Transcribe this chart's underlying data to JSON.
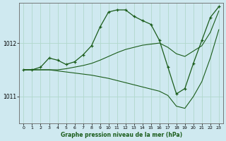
{
  "title": "Graphe pression niveau de la mer (hPa)",
  "background_color": "#cfe9f0",
  "grid_color": "#b0d8cc",
  "line_color": "#1a5c1a",
  "marker_color": "#1a5c1a",
  "xlim": [
    -0.5,
    23.5
  ],
  "ylim": [
    1010.5,
    1012.75
  ],
  "yticks": [
    1011,
    1012
  ],
  "xticks": [
    0,
    1,
    2,
    3,
    4,
    5,
    6,
    7,
    8,
    9,
    10,
    11,
    12,
    13,
    14,
    15,
    16,
    17,
    18,
    19,
    20,
    21,
    22,
    23
  ],
  "series": [
    {
      "x": [
        0,
        1,
        2,
        3,
        4,
        5,
        6,
        7,
        8,
        9,
        10,
        11,
        12,
        13,
        14,
        15,
        16,
        17,
        18,
        19,
        20,
        21,
        22,
        23
      ],
      "y": [
        1011.5,
        1011.5,
        1011.55,
        1011.72,
        1011.68,
        1011.6,
        1011.65,
        1011.78,
        1011.95,
        1012.3,
        1012.58,
        1012.62,
        1012.62,
        1012.5,
        1012.42,
        1012.35,
        1012.05,
        1011.55,
        1011.05,
        1011.15,
        1011.62,
        1012.05,
        1012.48,
        1012.68
      ],
      "has_markers": true
    },
    {
      "x": [
        0,
        1,
        2,
        3,
        4,
        5,
        6,
        7,
        8,
        9,
        10,
        11,
        12,
        13,
        14,
        15,
        16,
        17,
        18,
        19,
        20,
        21,
        22,
        23
      ],
      "y": [
        1011.5,
        1011.5,
        1011.5,
        1011.5,
        1011.5,
        1011.52,
        1011.55,
        1011.58,
        1011.62,
        1011.68,
        1011.75,
        1011.82,
        1011.88,
        1011.92,
        1011.96,
        1011.98,
        1012.0,
        1011.92,
        1011.8,
        1011.75,
        1011.85,
        1011.95,
        1012.2,
        1012.6
      ],
      "has_markers": false
    },
    {
      "x": [
        0,
        1,
        2,
        3,
        4,
        5,
        6,
        7,
        8,
        9,
        10,
        11,
        12,
        13,
        14,
        15,
        16,
        17,
        18,
        19,
        20,
        21,
        22,
        23
      ],
      "y": [
        1011.5,
        1011.5,
        1011.5,
        1011.5,
        1011.48,
        1011.46,
        1011.44,
        1011.42,
        1011.4,
        1011.37,
        1011.34,
        1011.3,
        1011.26,
        1011.22,
        1011.18,
        1011.14,
        1011.1,
        1011.02,
        1010.82,
        1010.78,
        1011.0,
        1011.28,
        1011.72,
        1012.25
      ],
      "has_markers": false
    }
  ]
}
